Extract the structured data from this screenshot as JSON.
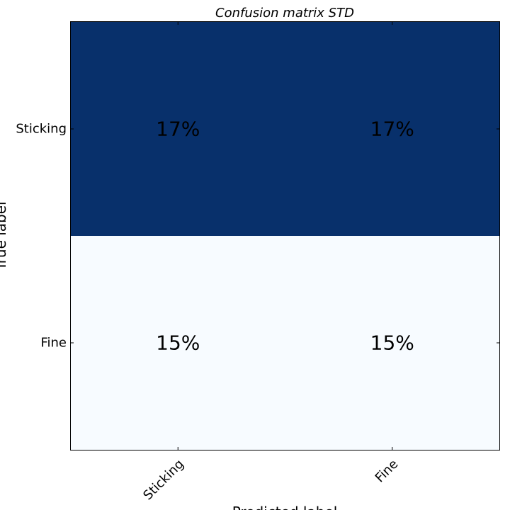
{
  "chart_data": {
    "type": "heatmap",
    "title": "Confusion matrix STD",
    "xlabel": "Predicted label",
    "ylabel": "True label",
    "x_categories": [
      "Sticking",
      "Fine"
    ],
    "y_categories": [
      "Sticking",
      "Fine"
    ],
    "values": [
      [
        17,
        17
      ],
      [
        15,
        15
      ]
    ],
    "cell_labels": [
      [
        "17%",
        "17%"
      ],
      [
        "15%",
        "15%"
      ]
    ],
    "colormap": [
      "#f7fbff",
      "#08306b"
    ],
    "grid": false,
    "colorbar": false
  }
}
